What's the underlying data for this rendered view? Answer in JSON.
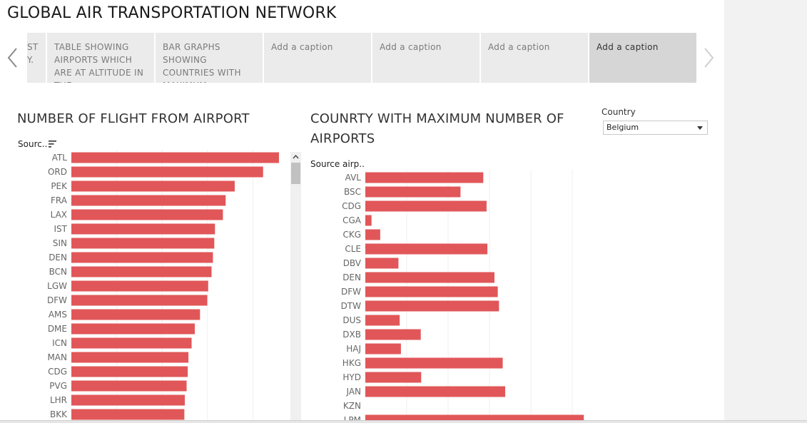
{
  "story": {
    "title": "GLOBAL AIR TRANSPORTATION NETWORK"
  },
  "captions": [
    {
      "text": "ST\nY."
    },
    {
      "text": "TABLE SHOWING AIRPORTS WHICH ARE AT ALTITUDE IN THE"
    },
    {
      "text": "BAR GRAPHS SHOWING COUNTRIES WITH MAXIMUM"
    },
    {
      "text": "Add a caption"
    },
    {
      "text": "Add a caption"
    },
    {
      "text": "Add a caption"
    },
    {
      "text": "Add a caption"
    }
  ],
  "icons": {
    "prev": "chevron-left-icon",
    "next": "chevron-right-icon",
    "sort": "sort-descending-icon",
    "dropdown": "chevron-down-icon"
  },
  "colors": {
    "bar": "#e15759",
    "grid": "#efefef",
    "caption_bg": "#ebebeb",
    "caption_active_bg": "#d6d6d6"
  },
  "sheet1": {
    "title": "NUMBER OF FLIGHT FROM AIRPORT",
    "field_label": "Sourc.."
  },
  "sheet2": {
    "title": "COUNRTY WITH MAXIMUM NUMBER OF AIRPORTS",
    "field_label": "Source airp.."
  },
  "filter": {
    "label": "Country",
    "selected": "Belgium"
  },
  "chart_data": [
    {
      "type": "bar",
      "orientation": "horizontal",
      "title": "NUMBER OF FLIGHT FROM AIRPORT",
      "ylabel": "Sourc..",
      "categories": [
        "ATL",
        "ORD",
        "PEK",
        "FRA",
        "LAX",
        "IST",
        "SIN",
        "DEN",
        "BCN",
        "LGW",
        "DFW",
        "AMS",
        "DME",
        "ICN",
        "MAN",
        "CDG",
        "PVG",
        "LHR",
        "BKK"
      ],
      "values": [
        915,
        845,
        720,
        680,
        668,
        633,
        630,
        624,
        618,
        603,
        599,
        567,
        544,
        530,
        516,
        513,
        508,
        500,
        498
      ],
      "xlim": [
        0,
        1000
      ],
      "grid": true
    },
    {
      "type": "bar",
      "orientation": "horizontal",
      "title": "COUNRTY WITH MAXIMUM NUMBER OF AIRPORTS",
      "ylabel": "Source airp..",
      "categories": [
        "AVL",
        "BSC",
        "CDG",
        "CGA",
        "CKG",
        "CLE",
        "DBV",
        "DEN",
        "DFW",
        "DTW",
        "DUS",
        "DXB",
        "HAJ",
        "HKG",
        "HYD",
        "JAN",
        "KZN",
        "LPM"
      ],
      "values": [
        2.85,
        2.3,
        2.93,
        0.15,
        0.36,
        2.95,
        0.8,
        3.12,
        3.2,
        3.23,
        0.83,
        1.34,
        0.86,
        3.32,
        1.35,
        3.38,
        0,
        5.28
      ],
      "xlim": [
        0,
        7
      ],
      "grid": true
    }
  ]
}
